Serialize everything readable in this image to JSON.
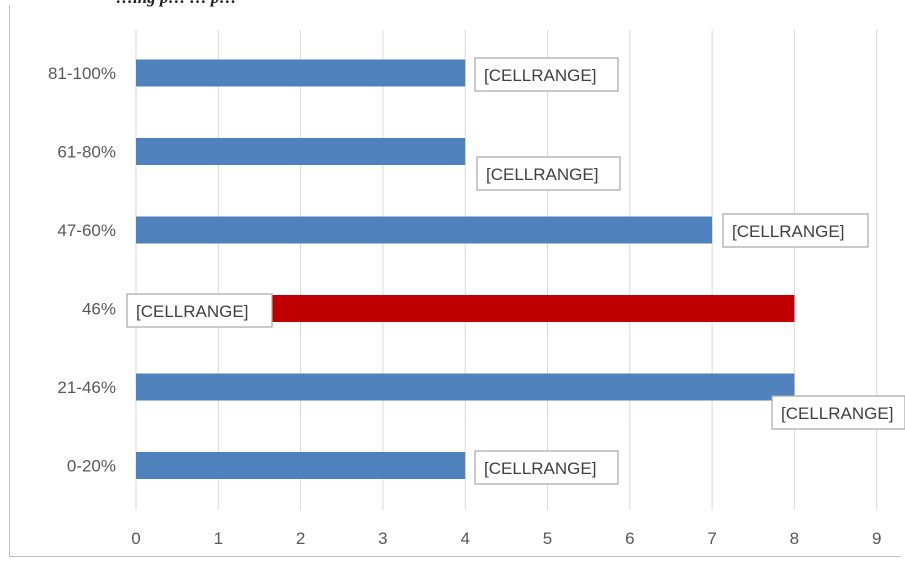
{
  "caption": "…ing p… … p…",
  "colors": {
    "default_bar": "#4f81bd",
    "highlight_bar": "#c00000",
    "gridline": "#d9d9d9",
    "label_border": "#a6a6a6"
  },
  "chart_data": {
    "type": "bar",
    "orientation": "horizontal",
    "title": "",
    "xlabel": "",
    "ylabel": "",
    "categories": [
      "0-20%",
      "21-46%",
      "46%",
      "47-60%",
      "61-80%",
      "81-100%"
    ],
    "values": [
      4,
      8,
      8,
      7,
      4,
      4
    ],
    "highlight_category": "46%",
    "data_labels": [
      "[CELLRANGE]",
      "[CELLRANGE]",
      "[CELLRANGE]",
      "[CELLRANGE]",
      "[CELLRANGE]",
      "[CELLRANGE]"
    ],
    "xlim": [
      0,
      9
    ],
    "x_ticks": [
      0,
      1,
      2,
      3,
      4,
      5,
      6,
      7,
      8,
      9
    ],
    "grid": true,
    "legend": false
  }
}
